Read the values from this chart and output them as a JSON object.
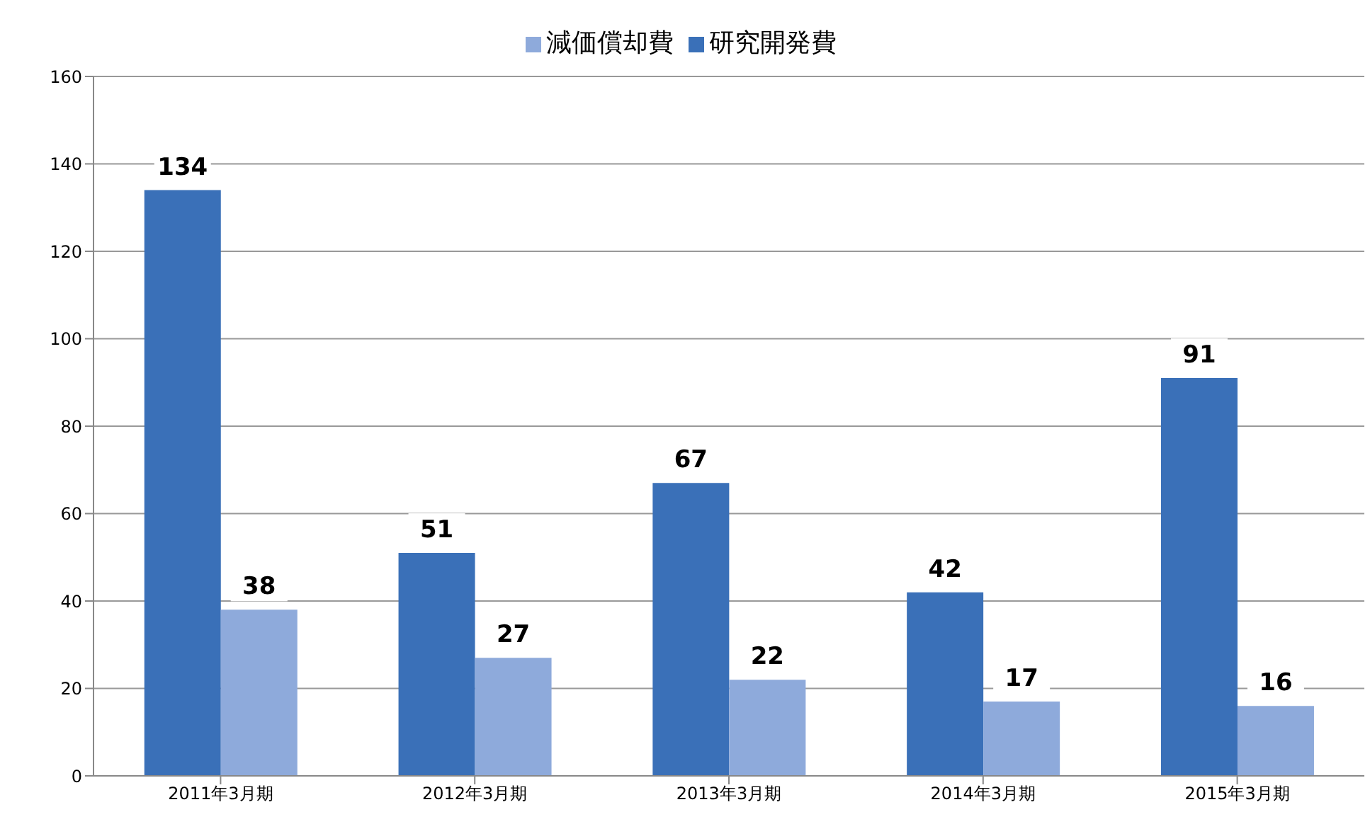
{
  "chart_data": {
    "type": "bar",
    "categories": [
      "2011年3月期",
      "2012年3月期",
      "2013年3月期",
      "2014年3月期",
      "2015年3月期"
    ],
    "series": [
      {
        "name": "研究開発費",
        "color": "#3a70b8",
        "values": [
          134,
          51,
          67,
          42,
          91
        ]
      },
      {
        "name": "減価償却費",
        "color": "#8eaadb",
        "values": [
          38,
          27,
          22,
          17,
          16
        ]
      }
    ],
    "ylim": [
      0,
      160
    ],
    "yticks": [
      0,
      20,
      40,
      60,
      80,
      100,
      120,
      140,
      160
    ],
    "grid": "y",
    "legend": "top",
    "data_labels": true
  }
}
